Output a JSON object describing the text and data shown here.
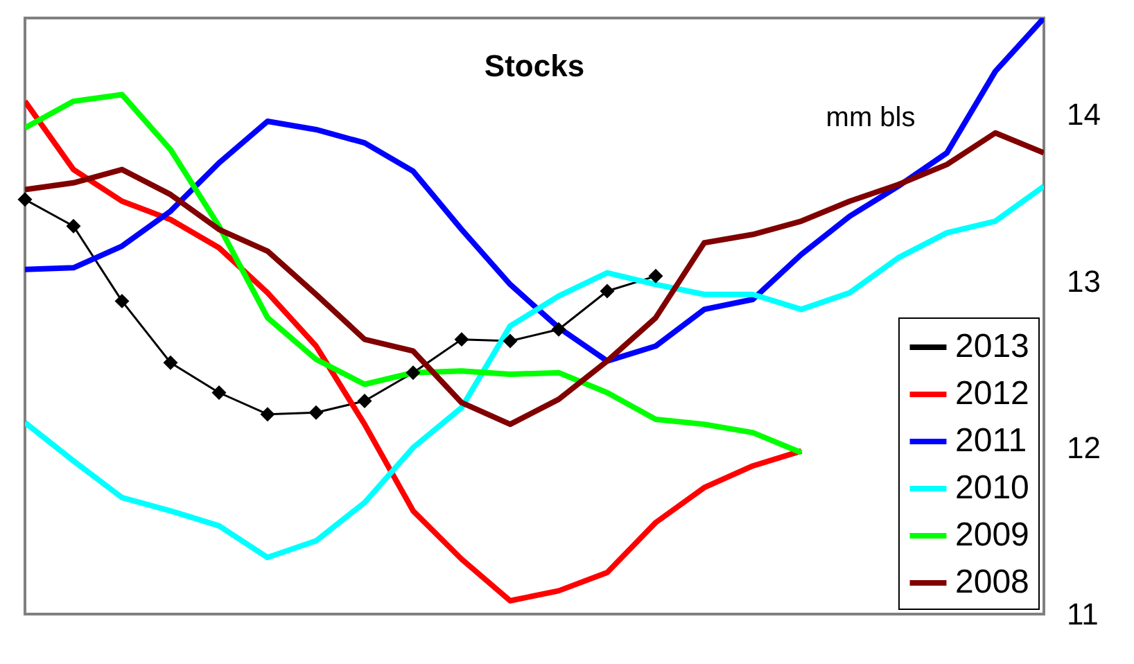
{
  "chart_data": {
    "type": "line",
    "title": "Stocks",
    "annotations": [
      "mm  bls"
    ],
    "categories": [
      null,
      null,
      null,
      null,
      null,
      null,
      null,
      null,
      null,
      null,
      null,
      null,
      null,
      null,
      null,
      null,
      null,
      null,
      null,
      null,
      null,
      null
    ],
    "ylim": [
      11,
      14.58
    ],
    "yticks": [
      {
        "value": 11,
        "label": "11"
      },
      {
        "value": 12,
        "label": "12"
      },
      {
        "value": 13,
        "label": "13"
      },
      {
        "value": 14,
        "label": "14"
      }
    ],
    "grid": false,
    "legend": "bottom right",
    "tick_labels": "y",
    "series": [
      {
        "name": "2013",
        "color": "#000000",
        "marker": "diamond",
        "values": [
          13.49,
          13.33,
          12.88,
          12.51,
          12.33,
          12.2,
          12.21,
          12.28,
          12.45,
          12.65,
          12.64,
          12.71,
          12.94,
          13.03,
          null,
          null,
          null,
          null,
          null,
          null,
          null,
          null
        ]
      },
      {
        "name": "2012",
        "color": "#ff0000",
        "values": [
          14.08,
          13.67,
          13.48,
          13.37,
          13.2,
          12.93,
          12.61,
          12.14,
          11.62,
          11.33,
          11.08,
          11.14,
          11.25,
          11.55,
          11.76,
          11.89,
          11.98,
          null,
          null,
          null,
          null,
          null
        ]
      },
      {
        "name": "2011",
        "color": "#0000ff",
        "values": [
          13.07,
          13.08,
          13.21,
          13.42,
          13.71,
          13.96,
          13.91,
          13.83,
          13.66,
          13.31,
          12.98,
          12.72,
          12.52,
          12.61,
          12.83,
          12.89,
          13.16,
          13.39,
          13.57,
          13.77,
          14.26,
          14.58
        ]
      },
      {
        "name": "2010",
        "color": "#00ffff",
        "values": [
          12.15,
          11.92,
          11.7,
          11.62,
          11.53,
          11.34,
          11.44,
          11.67,
          12.0,
          12.24,
          12.73,
          12.91,
          13.05,
          12.98,
          12.92,
          12.92,
          12.83,
          12.93,
          13.14,
          13.29,
          13.36,
          13.57
        ]
      },
      {
        "name": "2009",
        "color": "#00ff00",
        "values": [
          13.92,
          14.08,
          14.12,
          13.79,
          13.33,
          12.78,
          12.53,
          12.38,
          12.45,
          12.46,
          12.44,
          12.45,
          12.33,
          12.17,
          12.14,
          12.09,
          11.97,
          null,
          null,
          null,
          null,
          null
        ]
      },
      {
        "name": "2008",
        "color": "#800000",
        "values": [
          13.55,
          13.59,
          13.67,
          13.52,
          13.31,
          13.18,
          12.92,
          12.65,
          12.58,
          12.27,
          12.14,
          12.29,
          12.52,
          12.78,
          13.23,
          13.28,
          13.36,
          13.48,
          13.58,
          13.7,
          13.89,
          13.77
        ]
      }
    ]
  }
}
